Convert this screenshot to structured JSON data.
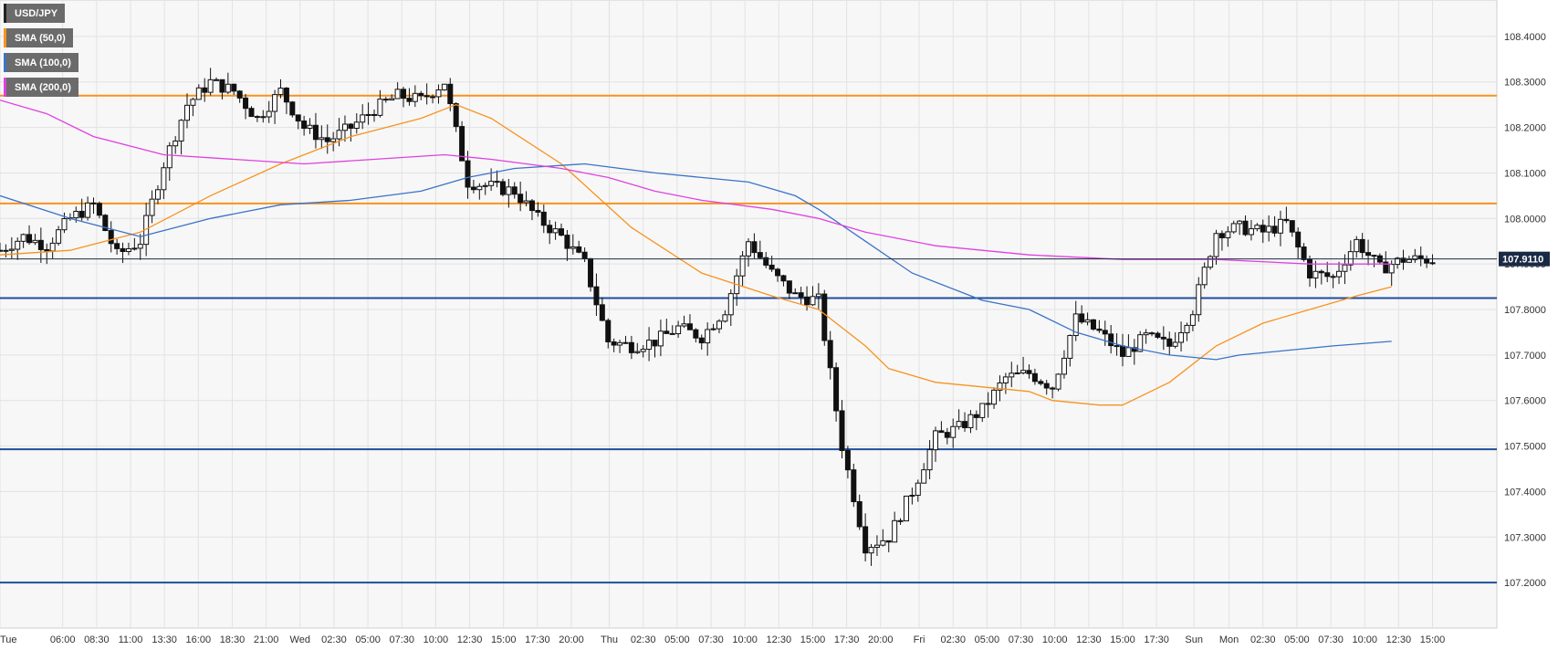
{
  "legend": [
    {
      "label": "USD/JPY",
      "color": "#222222"
    },
    {
      "label": "SMA (50,0)",
      "color": "#f7931e"
    },
    {
      "label": "SMA (100,0)",
      "color": "#3a73c8"
    },
    {
      "label": "SMA (200,0)",
      "color": "#e040e0"
    }
  ],
  "chart_data": {
    "type": "candlestick",
    "symbol": "USD/JPY",
    "ylim": [
      107.1,
      108.48
    ],
    "y_ticks": [
      "108.4000",
      "108.3000",
      "108.2000",
      "108.1000",
      "108.0000",
      "107.9000",
      "107.8000",
      "107.7000",
      "107.6000",
      "107.5000",
      "107.4000",
      "107.3000",
      "107.2000"
    ],
    "x_ticks": [
      "Tue",
      "06:00",
      "08:30",
      "11:00",
      "13:30",
      "16:00",
      "18:30",
      "21:00",
      "Wed",
      "02:30",
      "05:00",
      "07:30",
      "10:00",
      "12:30",
      "15:00",
      "17:30",
      "20:00",
      "Thu",
      "02:30",
      "05:00",
      "07:30",
      "10:00",
      "12:30",
      "15:00",
      "17:30",
      "20:00",
      "Fri",
      "02:30",
      "05:00",
      "07:30",
      "10:00",
      "12:30",
      "15:00",
      "17:30",
      "Sun",
      "Mon",
      "02:30",
      "05:00",
      "07:30",
      "10:00",
      "12:30",
      "15:00"
    ],
    "x_ticks_pos": [
      0,
      2.68,
      4.13,
      5.58,
      7.03,
      8.48,
      9.93,
      11.38,
      12.83,
      14.28,
      15.73,
      17.18,
      18.63,
      20.08,
      21.53,
      22.98,
      24.43,
      26.05,
      27.5,
      28.95,
      30.4,
      31.85,
      33.3,
      34.75,
      36.2,
      37.65,
      39.3,
      40.75,
      42.2,
      43.65,
      45.1,
      46.55,
      48.0,
      49.45,
      51.05,
      52.55,
      54.0,
      55.45,
      56.9,
      58.35,
      59.8,
      61.25
    ],
    "current_price": "107.9110",
    "current_price_value": 107.911,
    "horizontal_levels": [
      {
        "value": 108.27,
        "color": "#f7931e"
      },
      {
        "value": 108.033,
        "color": "#f7931e"
      },
      {
        "value": 107.825,
        "color": "#1f4e9c"
      },
      {
        "value": 107.493,
        "color": "#1f4e9c"
      },
      {
        "value": 107.2,
        "color": "#1f4e9c"
      }
    ],
    "price_path": [
      [
        0,
        107.93
      ],
      [
        1,
        107.96
      ],
      [
        2,
        107.94
      ],
      [
        3,
        108.0
      ],
      [
        4,
        108.03
      ],
      [
        5,
        107.92
      ],
      [
        6,
        107.95
      ],
      [
        7,
        108.12
      ],
      [
        8,
        108.25
      ],
      [
        9,
        108.3
      ],
      [
        10,
        108.28
      ],
      [
        11,
        108.22
      ],
      [
        12,
        108.28
      ],
      [
        13,
        108.2
      ],
      [
        14,
        108.17
      ],
      [
        15,
        108.2
      ],
      [
        16,
        108.24
      ],
      [
        17,
        108.27
      ],
      [
        18,
        108.26
      ],
      [
        19,
        108.3
      ],
      [
        20,
        108.08
      ],
      [
        21,
        108.07
      ],
      [
        22,
        108.06
      ],
      [
        23,
        108.0
      ],
      [
        24,
        107.96
      ],
      [
        25,
        107.9
      ],
      [
        26,
        107.73
      ],
      [
        27,
        107.72
      ],
      [
        28,
        107.73
      ],
      [
        29,
        107.76
      ],
      [
        30,
        107.74
      ],
      [
        31,
        107.8
      ],
      [
        32,
        107.95
      ],
      [
        33,
        107.88
      ],
      [
        34,
        107.83
      ],
      [
        35,
        107.82
      ],
      [
        36,
        107.5
      ],
      [
        37,
        107.28
      ],
      [
        38,
        107.3
      ],
      [
        39,
        107.4
      ],
      [
        40,
        107.52
      ],
      [
        41,
        107.54
      ],
      [
        42,
        107.58
      ],
      [
        43,
        107.65
      ],
      [
        44,
        107.66
      ],
      [
        45,
        107.63
      ],
      [
        46,
        107.78
      ],
      [
        47,
        107.75
      ],
      [
        48,
        107.7
      ],
      [
        49,
        107.74
      ],
      [
        50,
        107.72
      ],
      [
        51,
        107.8
      ],
      [
        52,
        107.97
      ],
      [
        53,
        107.98
      ],
      [
        54,
        107.97
      ],
      [
        55,
        107.99
      ],
      [
        56,
        107.88
      ],
      [
        57,
        107.87
      ],
      [
        58,
        107.95
      ],
      [
        59,
        107.89
      ],
      [
        60,
        107.91
      ],
      [
        61,
        107.91
      ]
    ],
    "sma50": [
      [
        0,
        107.92
      ],
      [
        3,
        107.93
      ],
      [
        6,
        107.97
      ],
      [
        9,
        108.05
      ],
      [
        12,
        108.12
      ],
      [
        15,
        108.18
      ],
      [
        18,
        108.22
      ],
      [
        19.5,
        108.25
      ],
      [
        21,
        108.22
      ],
      [
        24,
        108.12
      ],
      [
        27,
        107.98
      ],
      [
        30,
        107.88
      ],
      [
        33,
        107.83
      ],
      [
        35,
        107.8
      ],
      [
        37,
        107.72
      ],
      [
        38,
        107.67
      ],
      [
        40,
        107.64
      ],
      [
        44,
        107.62
      ],
      [
        45,
        107.6
      ],
      [
        47,
        107.59
      ],
      [
        48,
        107.59
      ],
      [
        50,
        107.64
      ],
      [
        52,
        107.72
      ],
      [
        54,
        107.77
      ],
      [
        56,
        107.8
      ],
      [
        58,
        107.83
      ],
      [
        59.5,
        107.85
      ]
    ],
    "sma100": [
      [
        0,
        108.05
      ],
      [
        3,
        108.0
      ],
      [
        6,
        107.96
      ],
      [
        9,
        108.0
      ],
      [
        12,
        108.03
      ],
      [
        15,
        108.04
      ],
      [
        18,
        108.06
      ],
      [
        20,
        108.09
      ],
      [
        22,
        108.11
      ],
      [
        25,
        108.12
      ],
      [
        28,
        108.1
      ],
      [
        32,
        108.08
      ],
      [
        34,
        108.05
      ],
      [
        35,
        108.02
      ],
      [
        37,
        107.95
      ],
      [
        39,
        107.88
      ],
      [
        42,
        107.82
      ],
      [
        44,
        107.8
      ],
      [
        46,
        107.75
      ],
      [
        48,
        107.72
      ],
      [
        50,
        107.7
      ],
      [
        52,
        107.69
      ],
      [
        53,
        107.7
      ],
      [
        55,
        107.71
      ],
      [
        57,
        107.72
      ],
      [
        59.5,
        107.73
      ]
    ],
    "sma200": [
      [
        0,
        108.26
      ],
      [
        2,
        108.23
      ],
      [
        4,
        108.18
      ],
      [
        7,
        108.14
      ],
      [
        10,
        108.13
      ],
      [
        13,
        108.12
      ],
      [
        16,
        108.13
      ],
      [
        19,
        108.14
      ],
      [
        21,
        108.13
      ],
      [
        24,
        108.11
      ],
      [
        26,
        108.09
      ],
      [
        28,
        108.06
      ],
      [
        30,
        108.04
      ],
      [
        33,
        108.02
      ],
      [
        35,
        108.0
      ],
      [
        37,
        107.97
      ],
      [
        40,
        107.94
      ],
      [
        44,
        107.92
      ],
      [
        48,
        107.91
      ],
      [
        52,
        107.91
      ],
      [
        56,
        107.9
      ],
      [
        59.5,
        107.9
      ]
    ]
  }
}
